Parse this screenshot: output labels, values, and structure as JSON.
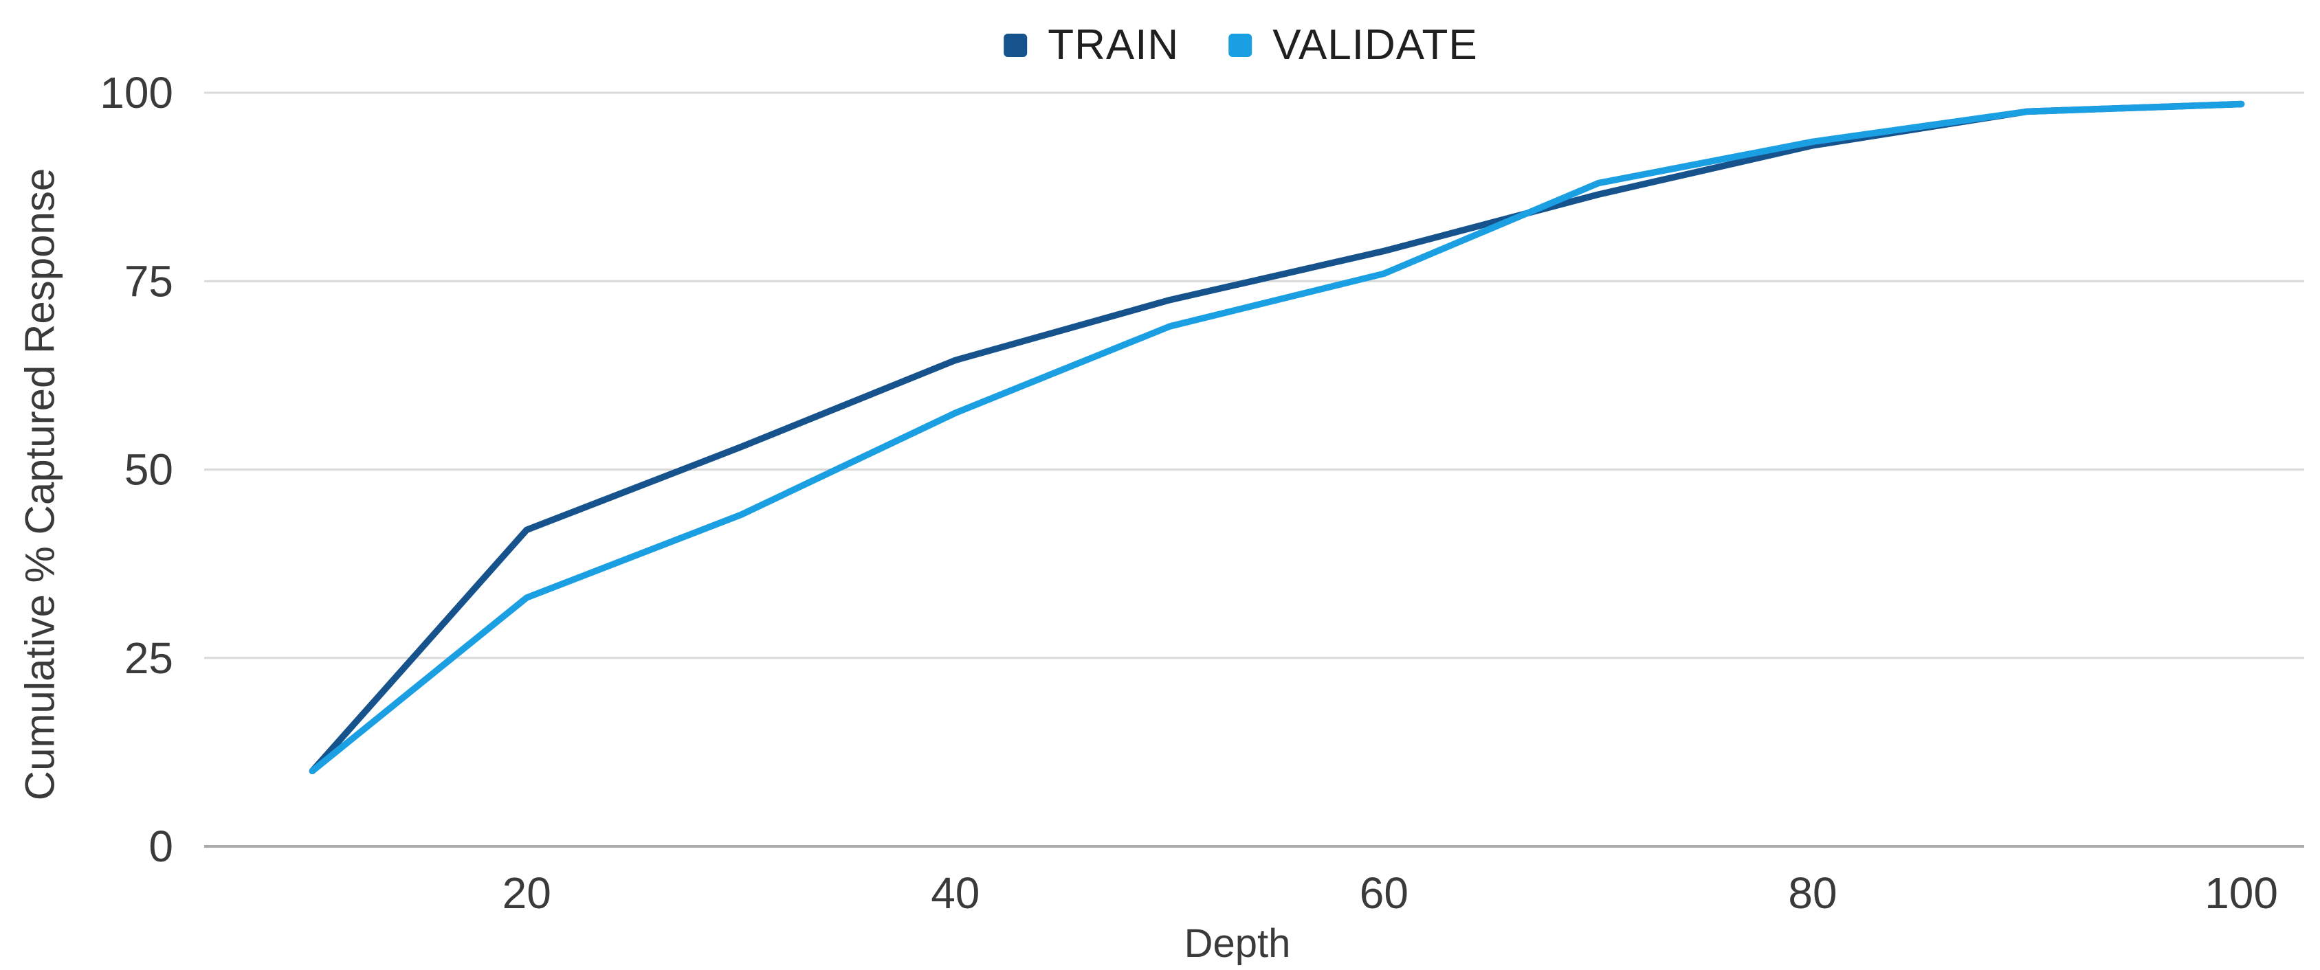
{
  "chart_data": {
    "type": "line",
    "x": [
      10,
      20,
      30,
      40,
      50,
      60,
      70,
      80,
      90,
      100
    ],
    "series": [
      {
        "name": "TRAIN",
        "color": "#16538C",
        "values": [
          10,
          42,
          53,
          64.5,
          72.5,
          79,
          86.5,
          93,
          97.5,
          98.5
        ]
      },
      {
        "name": "VALIDATE",
        "color": "#1B9FE3",
        "values": [
          10,
          33,
          44,
          57.5,
          69,
          76,
          88,
          93.5,
          97.5,
          98.5
        ]
      }
    ],
    "title": "",
    "xlabel": "Depth",
    "ylabel": "Cumulative % Captured Response",
    "xticks": [
      20,
      40,
      60,
      80,
      100
    ],
    "yticks": [
      0,
      25,
      50,
      75,
      100
    ],
    "xlim": [
      5,
      103
    ],
    "ylim": [
      0,
      100
    ],
    "grid": "horizontal-only",
    "legend_position": "top-center",
    "colors": {
      "gridline": "#D9D9D9",
      "baseline": "#ABABAB",
      "tick_text": "#3A3A3A"
    }
  }
}
